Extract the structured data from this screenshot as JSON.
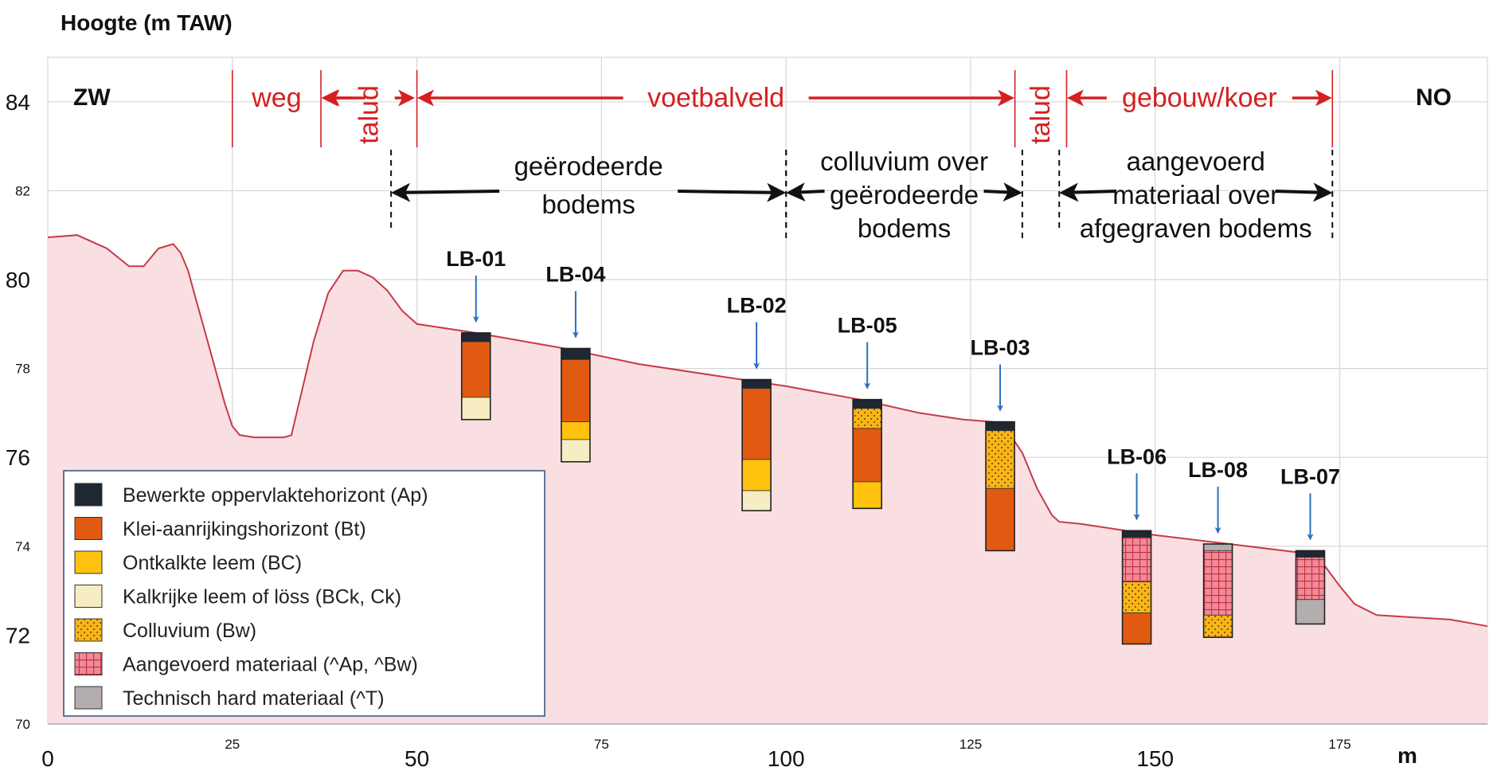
{
  "chart_data": {
    "type": "area",
    "title": "",
    "ylabel": "Hoogte (m TAW)",
    "xlabel": "m",
    "xlim": [
      0,
      195
    ],
    "ylim": [
      70,
      85
    ],
    "x_ticks_major": [
      0,
      50,
      100,
      150
    ],
    "x_ticks_minor": [
      25,
      75,
      125,
      175
    ],
    "y_ticks_major": [
      72,
      76,
      80,
      84
    ],
    "y_ticks_minor": [
      70,
      74,
      78,
      82
    ],
    "directions": {
      "left": "ZW",
      "right": "NO"
    },
    "profile": {
      "x": [
        0,
        4,
        8,
        11,
        13,
        15,
        17,
        18,
        19,
        20,
        22,
        24,
        25,
        26,
        28,
        32,
        33,
        34,
        36,
        38,
        40,
        42,
        44,
        46,
        48,
        50,
        58,
        70,
        80,
        90,
        100,
        110,
        118,
        124,
        128,
        130,
        132,
        134,
        136,
        137,
        140,
        150,
        160,
        170,
        172,
        173,
        175,
        177,
        180,
        190,
        195
      ],
      "y": [
        80.95,
        81.0,
        80.7,
        80.3,
        80.3,
        80.7,
        80.8,
        80.6,
        80.2,
        79.6,
        78.4,
        77.2,
        76.7,
        76.5,
        76.45,
        76.45,
        76.5,
        77.2,
        78.6,
        79.7,
        80.2,
        80.2,
        80.05,
        79.75,
        79.3,
        79.0,
        78.8,
        78.45,
        78.1,
        77.85,
        77.6,
        77.3,
        77.0,
        76.85,
        76.8,
        76.6,
        76.1,
        75.3,
        74.7,
        74.55,
        74.5,
        74.25,
        74.05,
        73.85,
        73.75,
        73.55,
        73.1,
        72.7,
        72.45,
        72.35,
        72.2
      ]
    },
    "zones_top": [
      {
        "label": "weg",
        "from": 25,
        "to": 37
      },
      {
        "label": "talud",
        "from": 37,
        "to": 50
      },
      {
        "label": "voetbalveld",
        "from": 50,
        "to": 131
      },
      {
        "label": "talud",
        "from": 131,
        "to": 138
      },
      {
        "label": "gebouw/koer",
        "from": 138,
        "to": 174
      }
    ],
    "zones_soil": [
      {
        "lines": [
          "geërodeerde",
          "bodems"
        ],
        "from": 46.5,
        "to": 100
      },
      {
        "lines": [
          "colluvium over",
          "geërodeerde",
          "bodems"
        ],
        "from": 100,
        "to": 132
      },
      {
        "lines": [
          "aangevoerd",
          "materiaal over",
          "afgegraven bodems"
        ],
        "from": 137,
        "to": 174
      }
    ],
    "boreholes": [
      {
        "name": "LB-01",
        "x": 58,
        "top": 78.8,
        "layers": [
          {
            "type": "Ap",
            "from": 78.8,
            "to": 78.6
          },
          {
            "type": "Bt",
            "from": 78.6,
            "to": 77.35
          },
          {
            "type": "BCk",
            "from": 77.35,
            "to": 76.85
          }
        ]
      },
      {
        "name": "LB-04",
        "x": 71.5,
        "top": 78.45,
        "layers": [
          {
            "type": "Ap",
            "from": 78.45,
            "to": 78.2
          },
          {
            "type": "Bt",
            "from": 78.2,
            "to": 76.8
          },
          {
            "type": "BC",
            "from": 76.8,
            "to": 76.4
          },
          {
            "type": "BCk",
            "from": 76.4,
            "to": 75.9
          }
        ]
      },
      {
        "name": "LB-02",
        "x": 96,
        "top": 77.75,
        "layers": [
          {
            "type": "Ap",
            "from": 77.75,
            "to": 77.55
          },
          {
            "type": "Bt",
            "from": 77.55,
            "to": 75.95
          },
          {
            "type": "BC",
            "from": 75.95,
            "to": 75.25
          },
          {
            "type": "BCk",
            "from": 75.25,
            "to": 74.8
          }
        ]
      },
      {
        "name": "LB-05",
        "x": 111,
        "top": 77.3,
        "layers": [
          {
            "type": "Ap",
            "from": 77.3,
            "to": 77.1
          },
          {
            "type": "Bw",
            "from": 77.1,
            "to": 76.65
          },
          {
            "type": "Bt",
            "from": 76.65,
            "to": 75.45
          },
          {
            "type": "BC",
            "from": 75.45,
            "to": 74.85
          }
        ]
      },
      {
        "name": "LB-03",
        "x": 129,
        "top": 76.8,
        "layers": [
          {
            "type": "Ap",
            "from": 76.8,
            "to": 76.6
          },
          {
            "type": "Bw",
            "from": 76.6,
            "to": 75.3
          },
          {
            "type": "Bt",
            "from": 75.3,
            "to": 73.9
          }
        ]
      },
      {
        "name": "LB-06",
        "x": 147.5,
        "top": 74.35,
        "layers": [
          {
            "type": "Ap",
            "from": 74.35,
            "to": 74.2
          },
          {
            "type": "Aan",
            "from": 74.2,
            "to": 73.2
          },
          {
            "type": "Bw",
            "from": 73.2,
            "to": 72.5
          },
          {
            "type": "Bt",
            "from": 72.5,
            "to": 71.8
          }
        ]
      },
      {
        "name": "LB-08",
        "x": 158.5,
        "top": 74.05,
        "layers": [
          {
            "type": "T",
            "from": 74.05,
            "to": 73.9
          },
          {
            "type": "Aan",
            "from": 73.9,
            "to": 72.45
          },
          {
            "type": "Bw",
            "from": 72.45,
            "to": 71.95
          }
        ]
      },
      {
        "name": "LB-07",
        "x": 171,
        "top": 73.9,
        "layers": [
          {
            "type": "Ap",
            "from": 73.9,
            "to": 73.75
          },
          {
            "type": "Aan",
            "from": 73.75,
            "to": 72.8
          },
          {
            "type": "T",
            "from": 72.8,
            "to": 72.25
          }
        ]
      }
    ],
    "legend": [
      {
        "key": "Ap",
        "label": "Bewerkte oppervlaktehorizont (Ap)"
      },
      {
        "key": "Bt",
        "label": "Klei-aanrijkingshorizont (Bt)"
      },
      {
        "key": "BC",
        "label": "Ontkalkte leem (BC)"
      },
      {
        "key": "BCk",
        "label": "Kalkrijke leem of löss (BCk, Ck)"
      },
      {
        "key": "Bw",
        "label": "Colluvium (Bw)"
      },
      {
        "key": "Aan",
        "label": "Aangevoerd materiaal (^Ap, ^Bw)"
      },
      {
        "key": "T",
        "label": "Technisch hard materiaal (^T)"
      }
    ],
    "legend_position": "bottom-left",
    "grid": true
  }
}
